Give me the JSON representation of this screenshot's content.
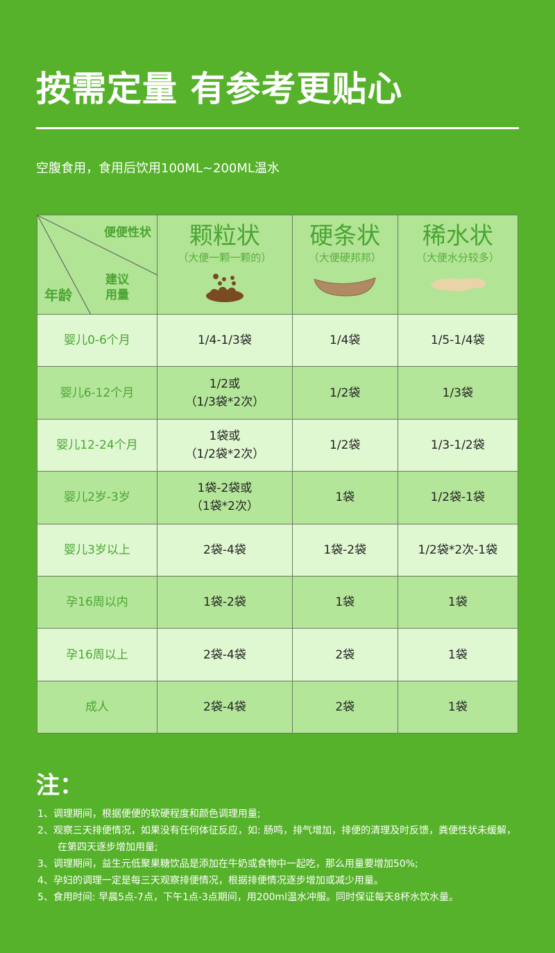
{
  "title": "按需定量 有参考更贴心",
  "subtitle": "空腹食用，食用后饮用100ML~200ML温水",
  "table": {
    "corner": {
      "top": "便便性状",
      "middle": "建议\n用量",
      "bottom": "年龄"
    },
    "columns": [
      {
        "name": "颗粒状",
        "desc": "（大便一颗一颗的）",
        "icon": "pellet-stool-icon"
      },
      {
        "name": "硬条状",
        "desc": "（大便硬邦邦）",
        "icon": "hard-stool-icon"
      },
      {
        "name": "稀水状",
        "desc": "（大便水分较多）",
        "icon": "watery-stool-icon"
      }
    ],
    "rows": [
      {
        "age": "婴儿0-6个月",
        "values": [
          "1/4-1/3袋",
          "1/4袋",
          "1/5-1/4袋"
        ]
      },
      {
        "age": "婴儿6-12个月",
        "values": [
          "1/2或\n（1/3袋*2次）",
          "1/2袋",
          "1/3袋"
        ]
      },
      {
        "age": "婴儿12-24个月",
        "values": [
          "1袋或\n（1/2袋*2次）",
          "1/2袋",
          "1/3-1/2袋"
        ]
      },
      {
        "age": "婴儿2岁-3岁",
        "values": [
          "1袋-2袋或\n（1袋*2次）",
          "1袋",
          "1/2袋-1袋"
        ]
      },
      {
        "age": "婴儿3岁以上",
        "values": [
          "2袋-4袋",
          "1袋-2袋",
          "1/2袋*2次-1袋"
        ]
      },
      {
        "age": "孕16周以内",
        "values": [
          "1袋-2袋",
          "1袋",
          "1袋"
        ]
      },
      {
        "age": "孕16周以上",
        "values": [
          "2袋-4袋",
          "2袋",
          "1袋"
        ]
      },
      {
        "age": "成人",
        "values": [
          "2袋-4袋",
          "2袋",
          "1袋"
        ]
      }
    ]
  },
  "notes_title": "注：",
  "notes": [
    "1、调理期间，根据便便的软硬程度和颜色调理用量;",
    "2、观察三天排便情况，如果没有任何体征反应，如: 肠鸣，排气增加，排便的清理及时反馈，粪便性状未缓解，在第四天逐步增加用量;",
    "3、调理期间，益生元低聚果糖饮品是添加在牛奶或食物中一起吃，那么用量要增加50%;",
    "4、孕妇的调理一定是每三天观察排便情况，根据排便情况逐步增加或减少用量。",
    "5、食用时间: 早晨5点-7点，下午1点-3点期间，用200ml温水冲服。同时保证每天8杯水饮水量。"
  ],
  "colors": {
    "background": "#56b22a",
    "header": "#b2e496",
    "row_light": "#e0f8d2",
    "row_dark": "#b4e69a",
    "accent_text": "#4aa532"
  }
}
